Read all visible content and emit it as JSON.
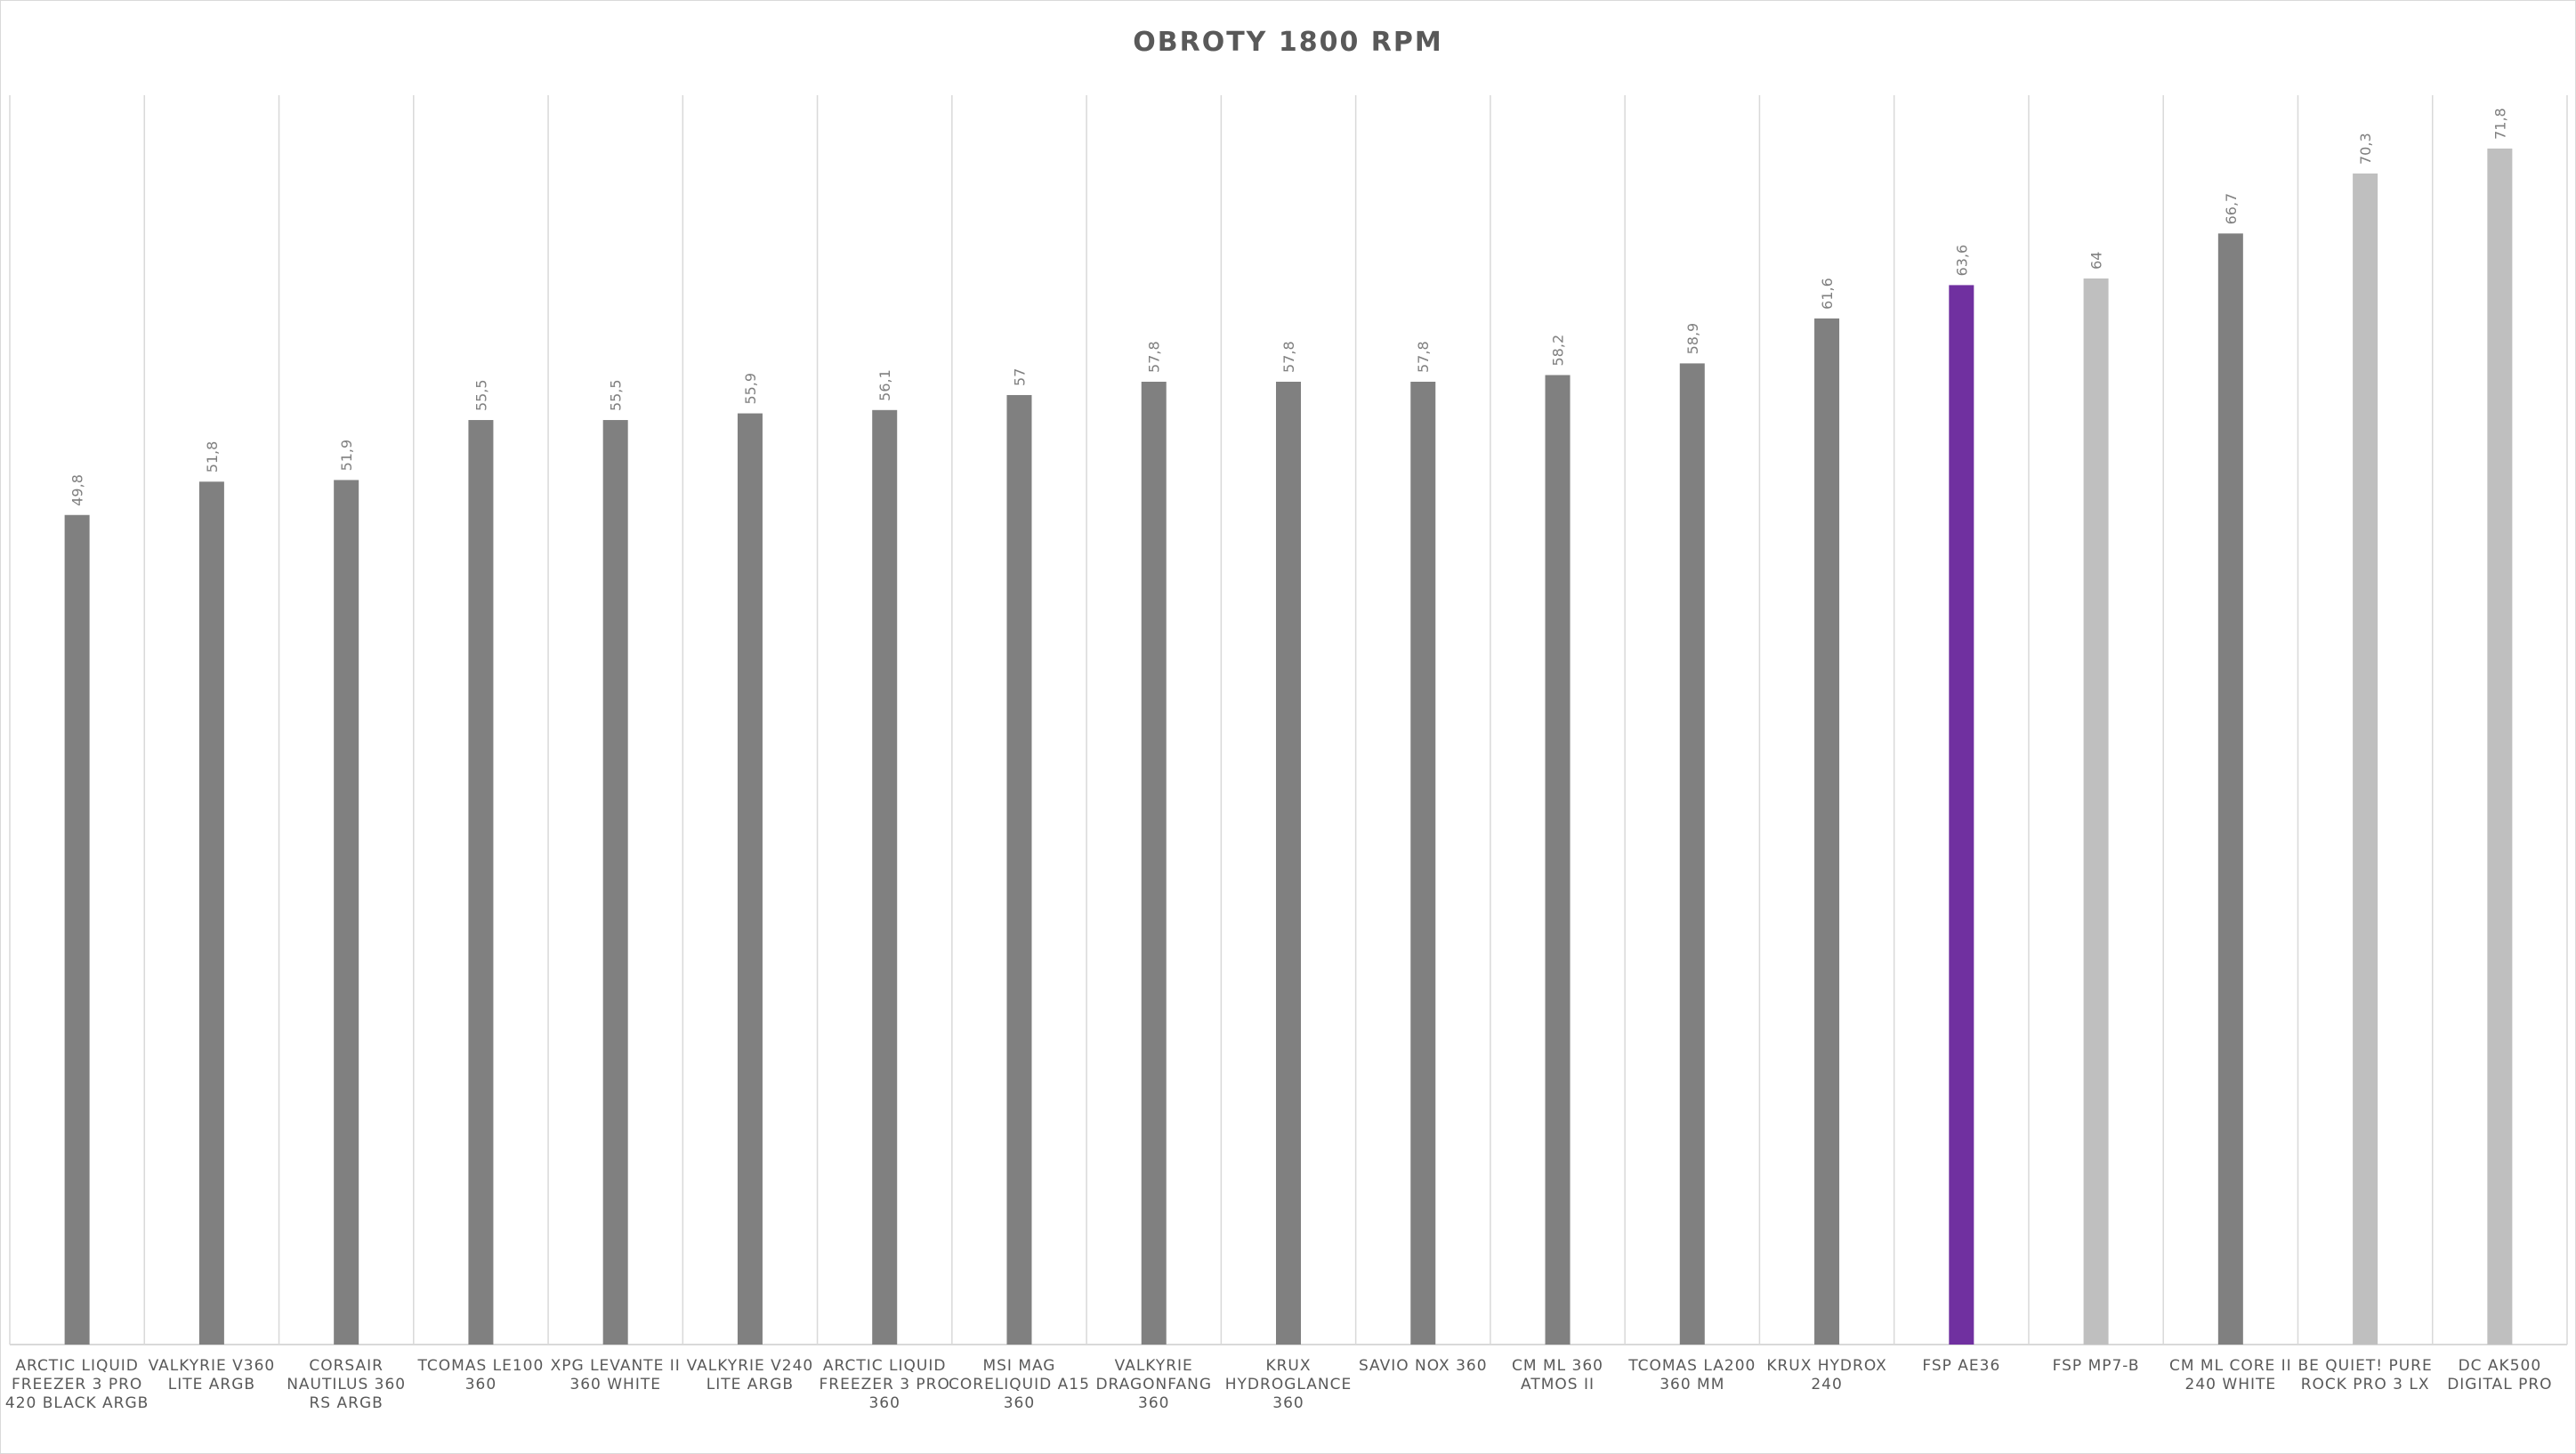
{
  "chart_data": {
    "type": "bar",
    "title": "OBROTY 1800 RPM",
    "xlabel": "",
    "ylabel": "",
    "ylim": [
      0,
      75
    ],
    "grid": "vertical category separators",
    "legend": "none",
    "categories": [
      [
        "ARCTIC LIQUID",
        "FREEZER 3 PRO",
        "420 BLACK ARGB"
      ],
      [
        "VALKYRIE V360",
        "LITE ARGB"
      ],
      [
        "CORSAIR",
        "NAUTILUS 360",
        "RS ARGB"
      ],
      [
        "TCOMAS LE100",
        "360"
      ],
      [
        "XPG LEVANTE II",
        "360 WHITE"
      ],
      [
        "VALKYRIE V240",
        "LITE ARGB"
      ],
      [
        "ARCTIC LIQUID",
        "FREEZER 3 PRO",
        "360"
      ],
      [
        "MSI MAG",
        "CORELIQUID A15",
        "360"
      ],
      [
        "VALKYRIE",
        "DRAGONFANG",
        "360"
      ],
      [
        "KRUX",
        "HYDROGLANCE",
        "360"
      ],
      [
        "SAVIO NOX 360"
      ],
      [
        "CM ML 360",
        "ATMOS II"
      ],
      [
        "TCOMAS LA200",
        "360 MM"
      ],
      [
        "KRUX HYDROX",
        "240"
      ],
      [
        "FSP AE36"
      ],
      [
        "FSP MP7-B"
      ],
      [
        "CM ML CORE II",
        "240 WHITE"
      ],
      [
        "BE QUIET! PURE",
        "ROCK PRO 3 LX"
      ],
      [
        "DC AK500",
        "DIGITAL PRO"
      ]
    ],
    "values": [
      49.8,
      51.8,
      51.9,
      55.5,
      55.5,
      55.9,
      56.1,
      57,
      57.8,
      57.8,
      57.8,
      58.2,
      58.9,
      61.6,
      63.6,
      64,
      66.7,
      70.3,
      71.8
    ],
    "value_labels": [
      "49,8",
      "51,8",
      "51,9",
      "55,5",
      "55,5",
      "55,9",
      "56,1",
      "57",
      "57,8",
      "57,8",
      "57,8",
      "58,2",
      "58,9",
      "61,6",
      "63,6",
      "64",
      "66,7",
      "70,3",
      "71,8"
    ],
    "bar_colors": [
      "#808080",
      "#808080",
      "#808080",
      "#808080",
      "#808080",
      "#808080",
      "#808080",
      "#808080",
      "#808080",
      "#808080",
      "#808080",
      "#808080",
      "#808080",
      "#808080",
      "#7030a0",
      "#bfbfbf",
      "#808080",
      "#bfbfbf",
      "#bfbfbf"
    ]
  },
  "colors": {
    "default_bar": "#808080",
    "highlight_bar": "#7030a0",
    "light_bar": "#bfbfbf",
    "gridline": "#d9d9d9",
    "text": "#595959"
  }
}
